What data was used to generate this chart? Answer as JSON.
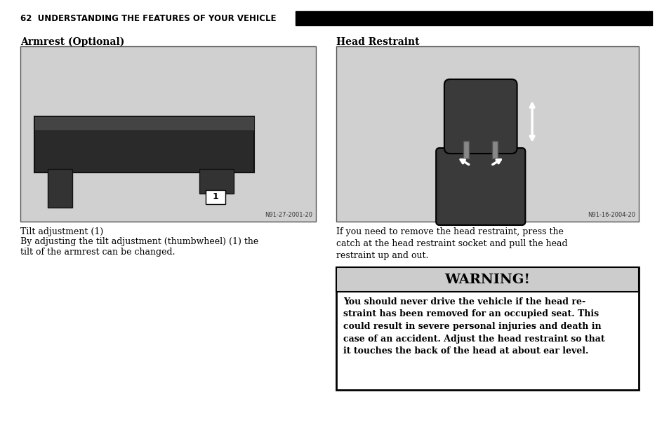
{
  "page_num": "62",
  "header_text": "62  UNDERSTANDING THE FEATURES OF YOUR VEHICLE",
  "header_bar_color": "#000000",
  "bg_color": "#ffffff",
  "left_section_title": "Armrest (Optional)",
  "right_section_title": "Head Restraint",
  "left_caption1": "Tilt adjustment (1)",
  "left_caption2": "By adjusting the tilt adjustment (thumbwheel) (1) the\ntilt of the armrest can be changed.",
  "right_caption": "If you need to remove the head restraint, press the\ncatch at the head restraint socket and pull the head\nrestraint up and out.",
  "warning_title": "WARNING!",
  "warning_body": "You should never drive the vehicle if the head re-\nstraint has been removed for an occupied seat. This\ncould result in severe personal injuries and death in\ncase of an accident. Adjust the head restraint so that\nit touches the back of the head at about ear level.",
  "warning_header_bg": "#cccccc",
  "warning_body_bg": "#ffffff",
  "warning_border": "#000000",
  "left_img_label": "N91-27-2001-20",
  "right_img_label": "N91-16-2004-20",
  "left_img_bg": "#d0d0d0",
  "right_img_bg": "#d0d0d0",
  "img_border": "#555555"
}
